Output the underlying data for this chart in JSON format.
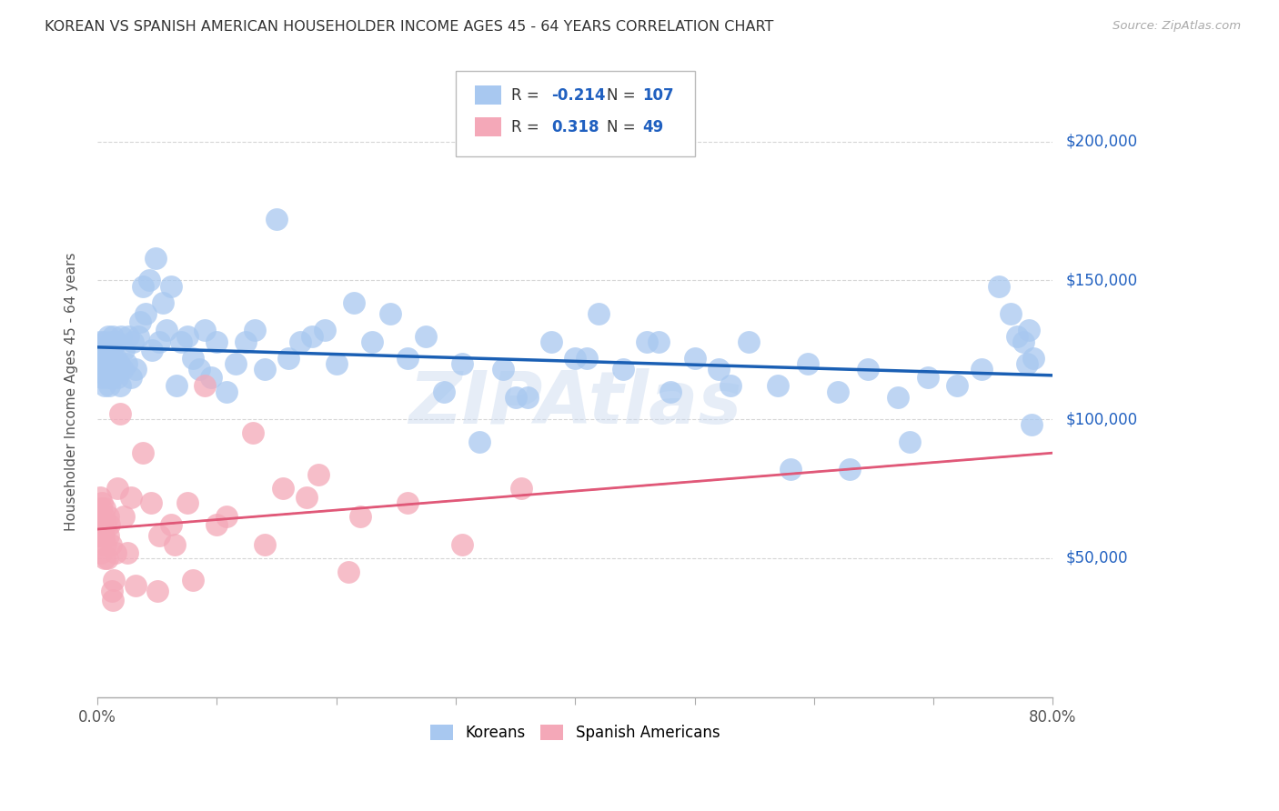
{
  "title": "KOREAN VS SPANISH AMERICAN HOUSEHOLDER INCOME AGES 45 - 64 YEARS CORRELATION CHART",
  "source": "Source: ZipAtlas.com",
  "ylabel": "Householder Income Ages 45 - 64 years",
  "xmin": 0.0,
  "xmax": 0.8,
  "ymin": 0,
  "ymax": 220000,
  "yticks": [
    50000,
    100000,
    150000,
    200000
  ],
  "ytick_labels": [
    "$50,000",
    "$100,000",
    "$150,000",
    "$200,000"
  ],
  "koreans_R": -0.214,
  "koreans_N": 107,
  "spanish_R": 0.318,
  "spanish_N": 49,
  "korean_color": "#a8c8f0",
  "spanish_color": "#f4a8b8",
  "korean_line_color": "#1a5fb4",
  "spanish_line_color": "#e05878",
  "watermark": "ZipAtlas",
  "legend_korean_label": "Koreans",
  "legend_spanish_label": "Spanish Americans",
  "background_color": "#ffffff",
  "grid_color": "#cccccc",
  "koreans_x": [
    0.002,
    0.003,
    0.004,
    0.004,
    0.005,
    0.005,
    0.006,
    0.006,
    0.007,
    0.007,
    0.008,
    0.008,
    0.009,
    0.009,
    0.01,
    0.01,
    0.011,
    0.011,
    0.012,
    0.012,
    0.013,
    0.014,
    0.015,
    0.016,
    0.017,
    0.018,
    0.019,
    0.02,
    0.021,
    0.022,
    0.024,
    0.026,
    0.028,
    0.03,
    0.032,
    0.034,
    0.036,
    0.038,
    0.04,
    0.043,
    0.046,
    0.049,
    0.052,
    0.055,
    0.058,
    0.062,
    0.066,
    0.07,
    0.075,
    0.08,
    0.085,
    0.09,
    0.095,
    0.1,
    0.108,
    0.116,
    0.124,
    0.132,
    0.14,
    0.15,
    0.16,
    0.17,
    0.18,
    0.19,
    0.2,
    0.215,
    0.23,
    0.245,
    0.26,
    0.275,
    0.29,
    0.305,
    0.32,
    0.34,
    0.36,
    0.38,
    0.4,
    0.42,
    0.44,
    0.46,
    0.48,
    0.5,
    0.52,
    0.545,
    0.57,
    0.595,
    0.62,
    0.645,
    0.67,
    0.695,
    0.72,
    0.74,
    0.755,
    0.765,
    0.77,
    0.775,
    0.778,
    0.78,
    0.782,
    0.784,
    0.35,
    0.41,
    0.47,
    0.53,
    0.58,
    0.63,
    0.68
  ],
  "koreans_y": [
    128000,
    120000,
    125000,
    115000,
    122000,
    118000,
    128000,
    112000,
    120000,
    125000,
    115000,
    122000,
    130000,
    118000,
    125000,
    112000,
    128000,
    118000,
    125000,
    115000,
    130000,
    118000,
    122000,
    128000,
    115000,
    120000,
    112000,
    130000,
    118000,
    125000,
    120000,
    130000,
    115000,
    128000,
    118000,
    130000,
    135000,
    148000,
    138000,
    150000,
    125000,
    158000,
    128000,
    142000,
    132000,
    148000,
    112000,
    128000,
    130000,
    122000,
    118000,
    132000,
    115000,
    128000,
    110000,
    120000,
    128000,
    132000,
    118000,
    172000,
    122000,
    128000,
    130000,
    132000,
    120000,
    142000,
    128000,
    138000,
    122000,
    130000,
    110000,
    120000,
    92000,
    118000,
    108000,
    128000,
    122000,
    138000,
    118000,
    128000,
    110000,
    122000,
    118000,
    128000,
    112000,
    120000,
    110000,
    118000,
    108000,
    115000,
    112000,
    118000,
    148000,
    138000,
    130000,
    128000,
    120000,
    132000,
    98000,
    122000,
    108000,
    122000,
    128000,
    112000,
    82000,
    82000,
    92000
  ],
  "spanish_x": [
    0.001,
    0.002,
    0.002,
    0.003,
    0.003,
    0.004,
    0.004,
    0.005,
    0.005,
    0.006,
    0.006,
    0.007,
    0.007,
    0.008,
    0.009,
    0.009,
    0.01,
    0.011,
    0.012,
    0.013,
    0.014,
    0.015,
    0.017,
    0.019,
    0.022,
    0.025,
    0.028,
    0.032,
    0.038,
    0.045,
    0.052,
    0.062,
    0.075,
    0.09,
    0.108,
    0.13,
    0.155,
    0.185,
    0.22,
    0.26,
    0.305,
    0.355,
    0.05,
    0.065,
    0.08,
    0.1,
    0.14,
    0.175,
    0.21
  ],
  "spanish_y": [
    58000,
    72000,
    58000,
    68000,
    52000,
    62000,
    70000,
    58000,
    65000,
    50000,
    68000,
    62000,
    55000,
    50000,
    65000,
    58000,
    62000,
    55000,
    38000,
    35000,
    42000,
    52000,
    75000,
    102000,
    65000,
    52000,
    72000,
    40000,
    88000,
    70000,
    58000,
    62000,
    70000,
    112000,
    65000,
    95000,
    75000,
    80000,
    65000,
    70000,
    55000,
    75000,
    38000,
    55000,
    42000,
    62000,
    55000,
    72000,
    45000
  ]
}
